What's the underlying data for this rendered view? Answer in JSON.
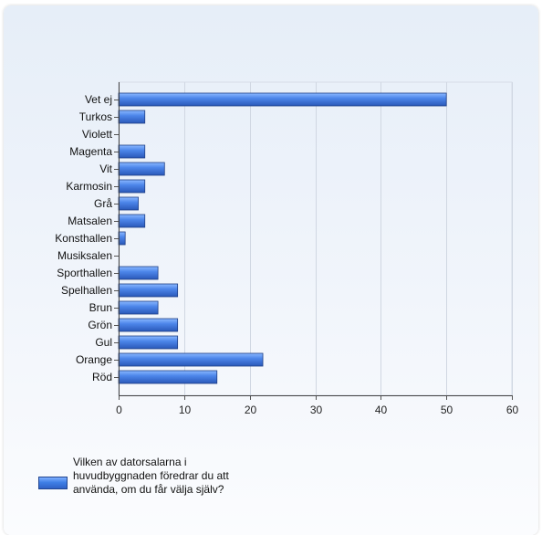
{
  "chart_data": {
    "type": "bar",
    "orientation": "horizontal",
    "categories": [
      "Vet ej",
      "Turkos",
      "Violett",
      "Magenta",
      "Vit",
      "Karmosin",
      "Grå",
      "Matsalen",
      "Konsthallen",
      "Musiksalen",
      "Sporthallen",
      "Spelhallen",
      "Brun",
      "Grön",
      "Gul",
      "Orange",
      "Röd"
    ],
    "series": [
      {
        "name": "Vilken av datorsalarna i huvudbyggnaden föredrar du att använda, om du får välja själv?",
        "values": [
          50,
          4,
          0,
          4,
          7,
          4,
          3,
          4,
          1,
          0,
          6,
          9,
          6,
          9,
          9,
          22,
          15
        ]
      }
    ],
    "xticks": [
      "0",
      "10",
      "20",
      "30",
      "40",
      "50",
      "60"
    ],
    "xlim": [
      0,
      60
    ],
    "grid": true,
    "legend_position": "bottom-left",
    "bar_color": "#3a6fd6"
  },
  "legend": {
    "label": "Vilken av datorsalarna i huvudbyggnaden föredrar du att använda, om du får välja själv?"
  }
}
